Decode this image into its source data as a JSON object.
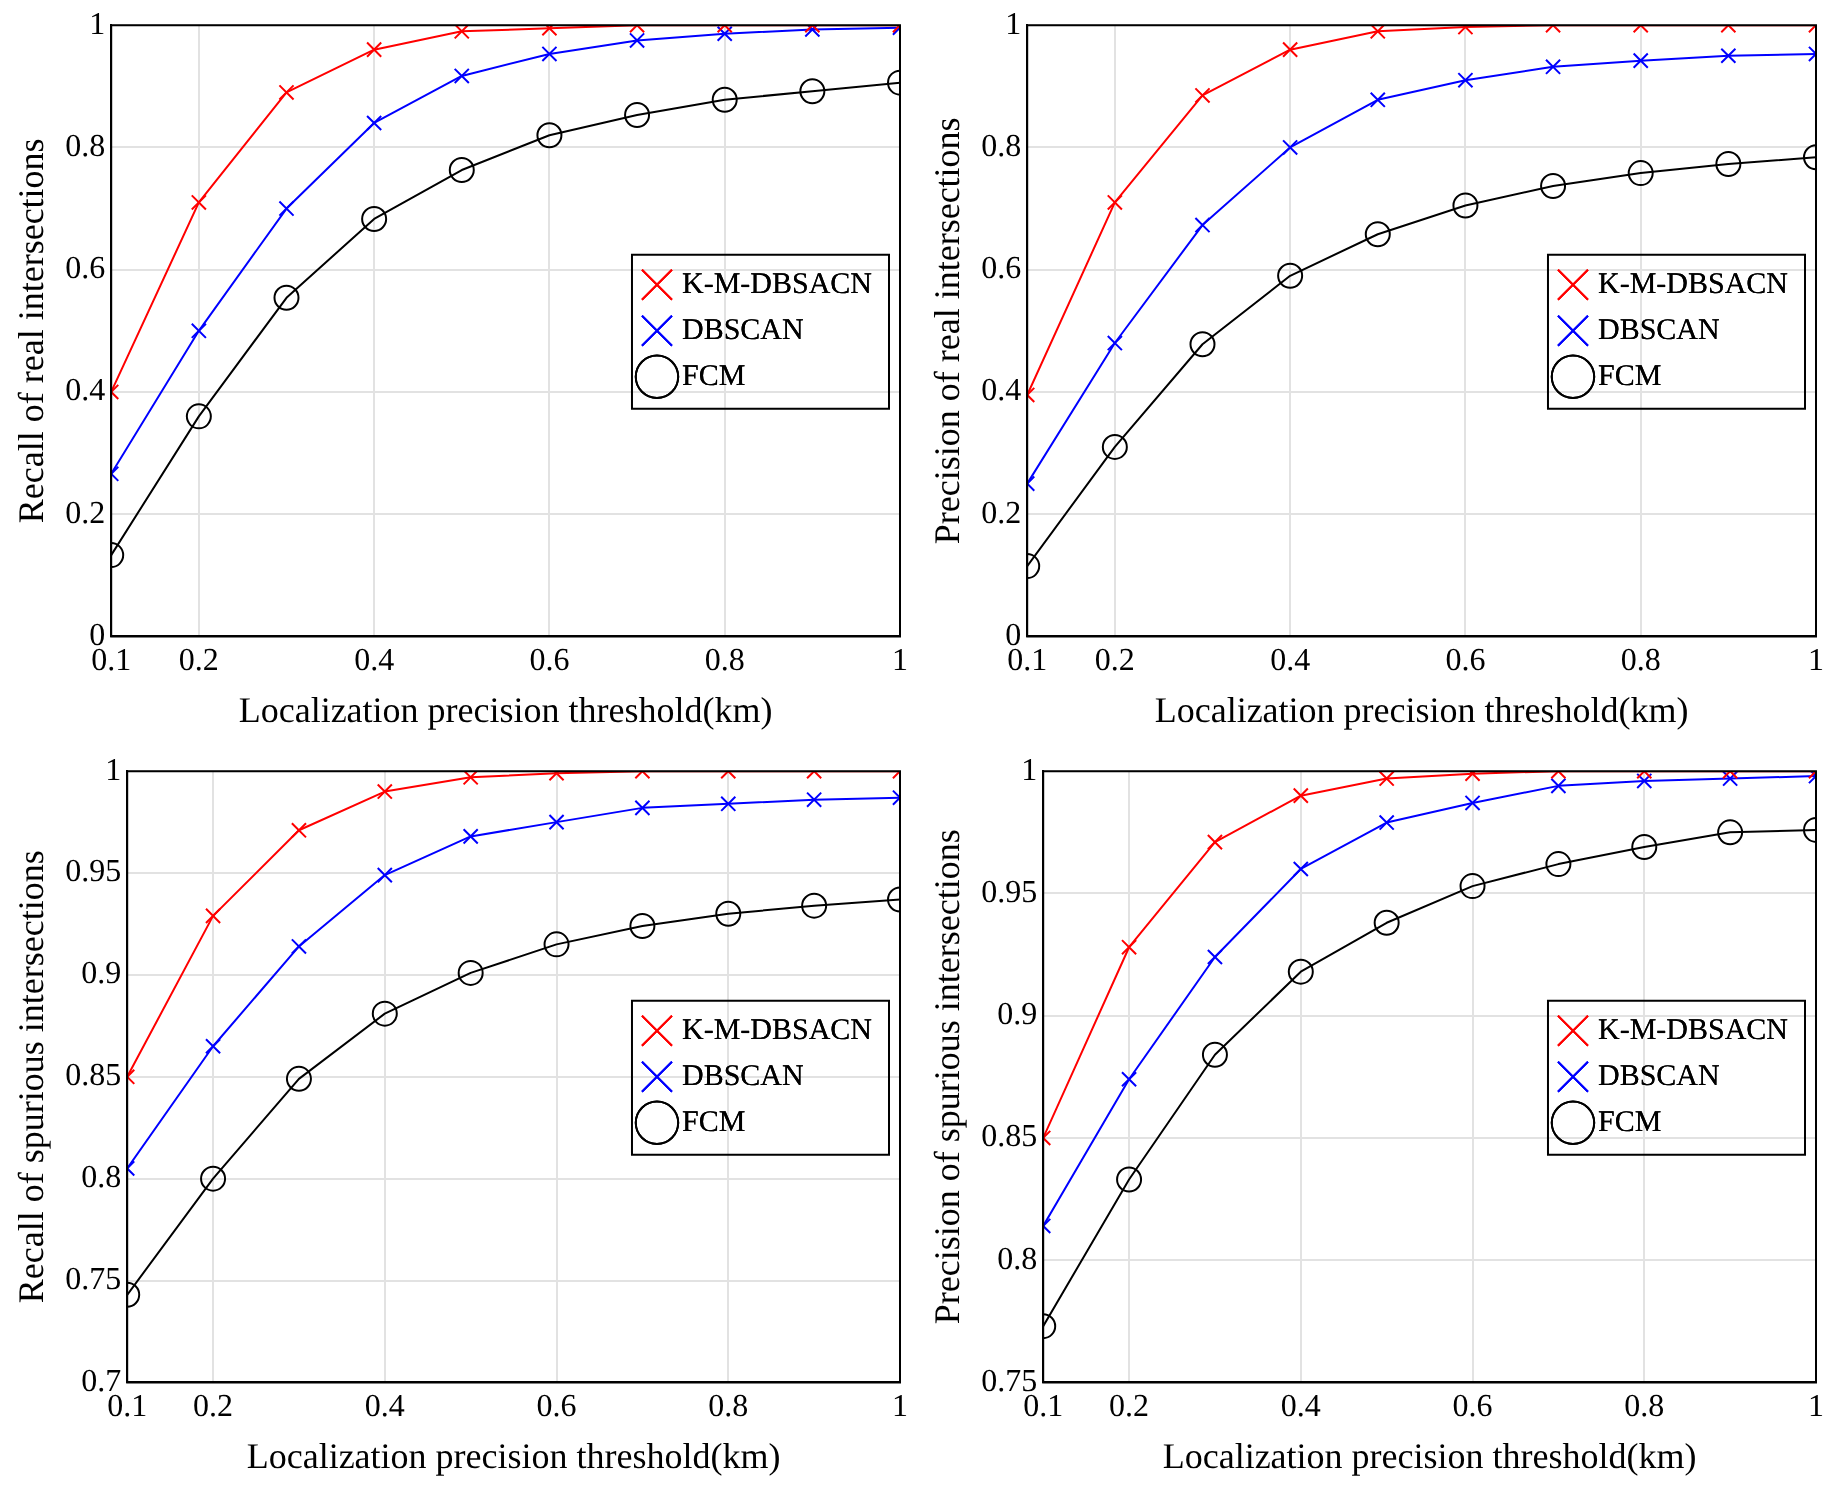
{
  "chart_data": [
    {
      "type": "line",
      "xlabel": "Localization precision threshold(km)",
      "ylabel": "Recall of real intersections",
      "x": [
        0.1,
        0.2,
        0.3,
        0.4,
        0.5,
        0.6,
        0.7,
        0.8,
        0.9,
        1
      ],
      "xlim": [
        0.1,
        1
      ],
      "xticks": [
        0.1,
        0.2,
        0.4,
        0.6,
        0.8,
        1
      ],
      "ylim": [
        0,
        1
      ],
      "yticks": [
        0,
        0.2,
        0.4,
        0.6,
        0.8,
        1
      ],
      "grid": true,
      "legend": "right",
      "series": [
        {
          "name": "K-M-DBSACN",
          "color": "#ff0000",
          "marker": "cross",
          "values": [
            0.4,
            0.71,
            0.89,
            0.96,
            0.99,
            0.995,
            1,
            1,
            1,
            1
          ]
        },
        {
          "name": "DBSCAN",
          "color": "#0000ff",
          "marker": "cross",
          "values": [
            0.266,
            0.5,
            0.7,
            0.84,
            0.917,
            0.953,
            0.975,
            0.986,
            0.993,
            0.996
          ]
        },
        {
          "name": "FCM",
          "color": "#000000",
          "marker": "circle",
          "values": [
            0.133,
            0.36,
            0.554,
            0.683,
            0.763,
            0.82,
            0.853,
            0.878,
            0.892,
            0.906
          ]
        }
      ]
    },
    {
      "type": "line",
      "xlabel": "Localization precision threshold(km)",
      "ylabel": "Precision of real intersections",
      "x": [
        0.1,
        0.2,
        0.3,
        0.4,
        0.5,
        0.6,
        0.7,
        0.8,
        0.9,
        1
      ],
      "xlim": [
        0.1,
        1
      ],
      "xticks": [
        0.1,
        0.2,
        0.4,
        0.6,
        0.8,
        1
      ],
      "ylim": [
        0,
        1
      ],
      "yticks": [
        0,
        0.2,
        0.4,
        0.6,
        0.8,
        1
      ],
      "grid": true,
      "legend": "right",
      "series": [
        {
          "name": "K-M-DBSACN",
          "color": "#ff0000",
          "marker": "cross",
          "values": [
            0.395,
            0.71,
            0.885,
            0.96,
            0.99,
            0.997,
            1,
            1,
            1,
            1
          ]
        },
        {
          "name": "DBSCAN",
          "color": "#0000ff",
          "marker": "cross",
          "values": [
            0.25,
            0.48,
            0.673,
            0.8,
            0.878,
            0.91,
            0.932,
            0.942,
            0.95,
            0.953
          ]
        },
        {
          "name": "FCM",
          "color": "#000000",
          "marker": "circle",
          "values": [
            0.115,
            0.31,
            0.478,
            0.59,
            0.658,
            0.705,
            0.737,
            0.758,
            0.773,
            0.784
          ]
        }
      ]
    },
    {
      "type": "line",
      "xlabel": "Localization precision threshold(km)",
      "ylabel": "Recall of spurious intersections",
      "x": [
        0.1,
        0.2,
        0.3,
        0.4,
        0.5,
        0.6,
        0.7,
        0.8,
        0.9,
        1
      ],
      "xlim": [
        0.1,
        1
      ],
      "xticks": [
        0.1,
        0.2,
        0.4,
        0.6,
        0.8,
        1
      ],
      "ylim": [
        0.7,
        1
      ],
      "yticks": [
        0.7,
        0.75,
        0.8,
        0.85,
        0.9,
        0.95,
        1
      ],
      "grid": true,
      "legend": "right",
      "series": [
        {
          "name": "K-M-DBSACN",
          "color": "#ff0000",
          "marker": "cross",
          "values": [
            0.85,
            0.929,
            0.971,
            0.99,
            0.997,
            0.999,
            1,
            1,
            1,
            1
          ]
        },
        {
          "name": "DBSCAN",
          "color": "#0000ff",
          "marker": "cross",
          "values": [
            0.805,
            0.865,
            0.914,
            0.949,
            0.968,
            0.975,
            0.982,
            0.984,
            0.986,
            0.987
          ]
        },
        {
          "name": "FCM",
          "color": "#000000",
          "marker": "circle",
          "values": [
            0.743,
            0.8,
            0.849,
            0.881,
            0.901,
            0.915,
            0.924,
            0.93,
            0.934,
            0.937
          ]
        }
      ]
    },
    {
      "type": "line",
      "xlabel": "Localization precision threshold(km)",
      "ylabel": "Precision of spurious intersections",
      "x": [
        0.1,
        0.2,
        0.3,
        0.4,
        0.5,
        0.6,
        0.7,
        0.8,
        0.9,
        1
      ],
      "xlim": [
        0.1,
        1
      ],
      "xticks": [
        0.1,
        0.2,
        0.4,
        0.6,
        0.8,
        1
      ],
      "ylim": [
        0.75,
        1
      ],
      "yticks": [
        0.75,
        0.8,
        0.85,
        0.9,
        0.95,
        1
      ],
      "grid": true,
      "legend": "right",
      "series": [
        {
          "name": "K-M-DBSACN",
          "color": "#ff0000",
          "marker": "cross",
          "values": [
            0.85,
            0.928,
            0.971,
            0.99,
            0.997,
            0.999,
            1,
            1,
            1,
            1
          ]
        },
        {
          "name": "DBSCAN",
          "color": "#0000ff",
          "marker": "cross",
          "values": [
            0.814,
            0.874,
            0.924,
            0.96,
            0.979,
            0.987,
            0.994,
            0.996,
            0.997,
            0.998
          ]
        },
        {
          "name": "FCM",
          "color": "#000000",
          "marker": "circle",
          "values": [
            0.773,
            0.833,
            0.884,
            0.918,
            0.938,
            0.953,
            0.962,
            0.969,
            0.975,
            0.976
          ]
        }
      ]
    }
  ]
}
